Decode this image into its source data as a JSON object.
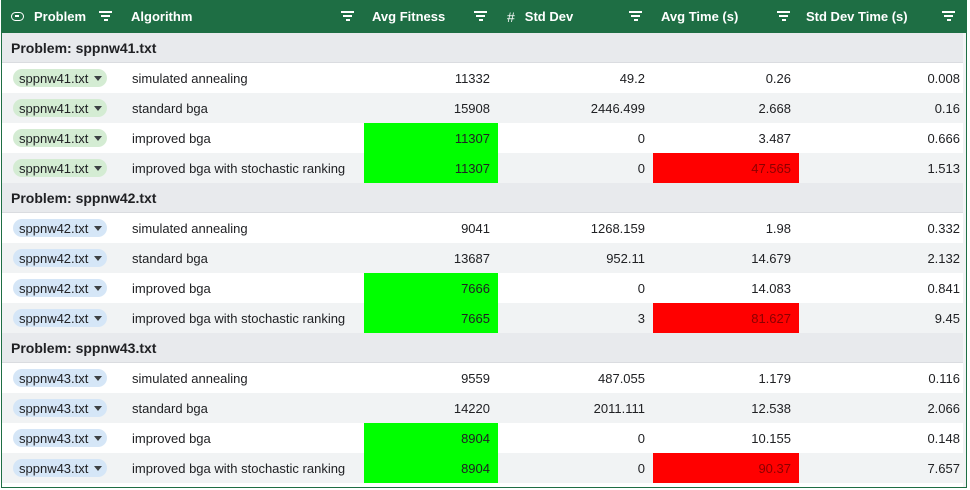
{
  "header": {
    "problem": "Problem",
    "algorithm": "Algorithm",
    "avg_fitness": "Avg Fitness",
    "hash": "#",
    "std_dev": "Std Dev",
    "avg_time": "Avg Time (s)",
    "std_dev_time": "Std Dev Time (s)"
  },
  "colors": {
    "header_bg": "#1e6e44",
    "best_fitness": "#00ff00",
    "worst_time": "#ff0000",
    "chip_group1": "#d4ecd3",
    "chip_group2": "#d5e6f7"
  },
  "groups": [
    {
      "label": "Problem: sppnw41.txt",
      "rows": [
        {
          "problem": "sppnw41.txt",
          "algorithm": "simulated annealing",
          "avg_fitness": "11332",
          "std_dev": "49.2",
          "avg_time": "0.26",
          "std_dev_time": "0.008"
        },
        {
          "problem": "sppnw41.txt",
          "algorithm": "standard bga",
          "avg_fitness": "15908",
          "std_dev": "2446.499",
          "avg_time": "2.668",
          "std_dev_time": "0.16"
        },
        {
          "problem": "sppnw41.txt",
          "algorithm": "improved bga",
          "avg_fitness": "11307",
          "std_dev": "0",
          "avg_time": "3.487",
          "std_dev_time": "0.666"
        },
        {
          "problem": "sppnw41.txt",
          "algorithm": "improved bga with stochastic ranking",
          "avg_fitness": "11307",
          "std_dev": "0",
          "avg_time": "47.565",
          "std_dev_time": "1.513"
        }
      ]
    },
    {
      "label": "Problem: sppnw42.txt",
      "rows": [
        {
          "problem": "sppnw42.txt",
          "algorithm": "simulated annealing",
          "avg_fitness": "9041",
          "std_dev": "1268.159",
          "avg_time": "1.98",
          "std_dev_time": "0.332"
        },
        {
          "problem": "sppnw42.txt",
          "algorithm": "standard bga",
          "avg_fitness": "13687",
          "std_dev": "952.11",
          "avg_time": "14.679",
          "std_dev_time": "2.132"
        },
        {
          "problem": "sppnw42.txt",
          "algorithm": "improved bga",
          "avg_fitness": "7666",
          "std_dev": "0",
          "avg_time": "14.083",
          "std_dev_time": "0.841"
        },
        {
          "problem": "sppnw42.txt",
          "algorithm": "improved bga with stochastic ranking",
          "avg_fitness": "7665",
          "std_dev": "3",
          "avg_time": "81.627",
          "std_dev_time": "9.45"
        }
      ]
    },
    {
      "label": "Problem: sppnw43.txt",
      "rows": [
        {
          "problem": "sppnw43.txt",
          "algorithm": "simulated annealing",
          "avg_fitness": "9559",
          "std_dev": "487.055",
          "avg_time": "1.179",
          "std_dev_time": "0.116"
        },
        {
          "problem": "sppnw43.txt",
          "algorithm": "standard bga",
          "avg_fitness": "14220",
          "std_dev": "2011.111",
          "avg_time": "12.538",
          "std_dev_time": "2.066"
        },
        {
          "problem": "sppnw43.txt",
          "algorithm": "improved bga",
          "avg_fitness": "8904",
          "std_dev": "0",
          "avg_time": "10.155",
          "std_dev_time": "0.148"
        },
        {
          "problem": "sppnw43.txt",
          "algorithm": "improved bga with stochastic ranking",
          "avg_fitness": "8904",
          "std_dev": "0",
          "avg_time": "90.37",
          "std_dev_time": "7.657"
        }
      ]
    }
  ]
}
